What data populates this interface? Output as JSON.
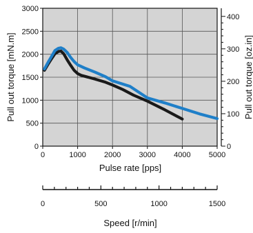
{
  "chart_data": {
    "type": "line",
    "xlabel": "Pulse rate [pps]",
    "ylabel": "Pull out torque [mN.m]",
    "y2label": "Pull out torque [oz.in]",
    "x2label": "Speed [r/min]",
    "xlim": [
      0,
      5000
    ],
    "ylim": [
      0,
      3000
    ],
    "y2lim": [
      0,
      425
    ],
    "x2lim": [
      0,
      1500
    ],
    "xticks": [
      "0",
      "1000",
      "2000",
      "3000",
      "4000",
      "5000"
    ],
    "yticks": [
      "0",
      "500",
      "1000",
      "1500",
      "2000",
      "2500",
      "3000"
    ],
    "y2ticks": [
      "0",
      "100",
      "200",
      "300",
      "400"
    ],
    "x2ticks": [
      "0",
      "500",
      "1000",
      "1500"
    ],
    "grid": true,
    "plot_background": "#d4d4d4",
    "series": [
      {
        "color": "#1a1a1a",
        "x": [
          50,
          150,
          250,
          350,
          450,
          520,
          600,
          700,
          800,
          900,
          1000,
          1100,
          1250,
          1500,
          1800,
          2000,
          2300,
          2600,
          3000,
          3500,
          4000
        ],
        "y": [
          1650,
          1780,
          1900,
          2010,
          2060,
          2070,
          2010,
          1880,
          1760,
          1650,
          1580,
          1540,
          1510,
          1460,
          1390,
          1330,
          1230,
          1110,
          980,
          790,
          590
        ]
      },
      {
        "color": "#1f7fc8",
        "x": [
          50,
          150,
          250,
          350,
          450,
          520,
          600,
          700,
          800,
          900,
          1000,
          1200,
          1500,
          1800,
          2000,
          2500,
          3000,
          3500,
          4000,
          4500,
          5000
        ],
        "y": [
          1680,
          1820,
          1950,
          2080,
          2130,
          2140,
          2110,
          2040,
          1930,
          1840,
          1770,
          1700,
          1610,
          1510,
          1420,
          1300,
          1050,
          940,
          820,
          700,
          600
        ]
      }
    ]
  }
}
